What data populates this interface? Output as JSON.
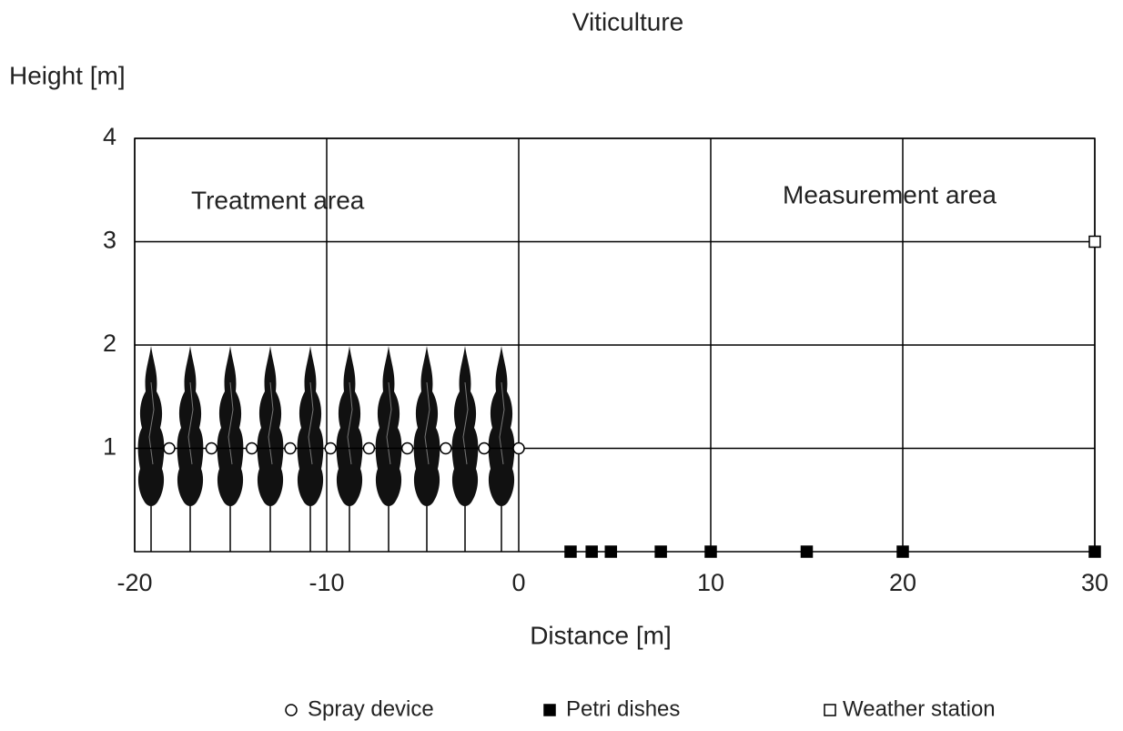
{
  "chart_data": {
    "type": "scatter",
    "title": "Viticulture",
    "x_label": "Distance [m]",
    "y_label": "Height [m]",
    "annotations": [
      "Treatment area",
      "Measurement area"
    ],
    "xlim": [
      -20,
      30
    ],
    "ylim": [
      0,
      4
    ],
    "xticks": [
      -20,
      -10,
      0,
      10,
      20,
      30
    ],
    "yticks": [
      1,
      2,
      3,
      4
    ],
    "grid": true,
    "series": [
      {
        "name": "Spray device",
        "marker": "circle",
        "color": "#000000",
        "fill": "#ffffff",
        "x": [
          -18.2,
          -16,
          -13.9,
          -11.9,
          -9.8,
          -7.8,
          -5.8,
          -3.8,
          -1.8,
          0
        ],
        "values": [
          1,
          1,
          1,
          1,
          1,
          1,
          1,
          1,
          1,
          1
        ]
      },
      {
        "name": "Petri dishes",
        "marker": "square",
        "color": "#000000",
        "fill": "#000000",
        "x": [
          2.7,
          3.8,
          4.8,
          7.4,
          10,
          15,
          20,
          30
        ],
        "values": [
          0,
          0,
          0,
          0,
          0,
          0,
          0,
          0
        ]
      },
      {
        "name": "Weather station",
        "marker": "square",
        "color": "#000000",
        "fill": "#ffffff",
        "x": [
          30
        ],
        "values": [
          3
        ]
      }
    ]
  }
}
